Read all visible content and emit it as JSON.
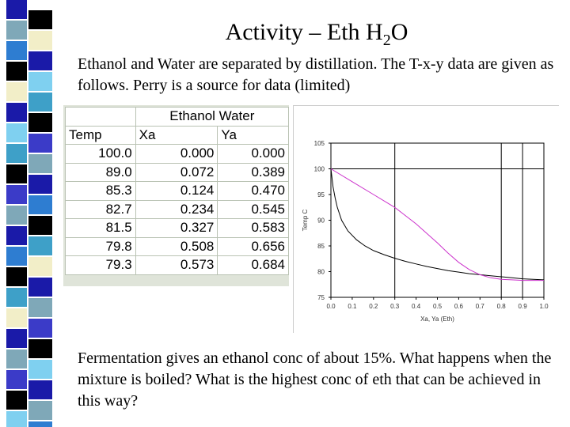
{
  "slide": {
    "title_main": "Activity – Eth H",
    "title_sub": "2",
    "title_tail": "O",
    "intro": "Ethanol and Water are separated by distillation.  The T-x-y data are given as follows. Perry is a source for data (limited)",
    "question": "Fermentation gives an ethanol conc of about 15%.   What happens when the mixture is boiled?  What is the highest conc of eth that can be achieved in this way?"
  },
  "table": {
    "caption": "Ethanol Water",
    "headers": [
      "Temp",
      "Xa",
      "Ya"
    ],
    "rows": [
      [
        "100.0",
        "0.000",
        "0.000"
      ],
      [
        "89.0",
        "0.072",
        "0.389"
      ],
      [
        "85.3",
        "0.124",
        "0.470"
      ],
      [
        "82.7",
        "0.234",
        "0.545"
      ],
      [
        "81.5",
        "0.327",
        "0.583"
      ],
      [
        "79.8",
        "0.508",
        "0.656"
      ],
      [
        "79.3",
        "0.573",
        "0.684"
      ]
    ]
  },
  "chart_data": {
    "type": "line",
    "xlabel": "Xa, Ya (Eth)",
    "ylabel": "Temp C",
    "xlim": [
      0,
      1
    ],
    "ylim": [
      75,
      105
    ],
    "x_ticks": [
      "0.0",
      "0.1",
      "0.2",
      "0.3",
      "0.4",
      "0.5",
      "0.6",
      "0.7",
      "0.8",
      "0.9",
      "1.0"
    ],
    "y_ticks": [
      "75",
      "80",
      "85",
      "90",
      "95",
      "100",
      "105"
    ],
    "hlines": [
      100
    ],
    "vlines": [
      0.3,
      0.8,
      0.9
    ],
    "series": [
      {
        "color": "#000000",
        "x": [
          0,
          0.01,
          0.02,
          0.03,
          0.05,
          0.08,
          0.12,
          0.16,
          0.2,
          0.25,
          0.3,
          0.35,
          0.4,
          0.45,
          0.5,
          0.55,
          0.6,
          0.65,
          0.7,
          0.75,
          0.8,
          0.85,
          0.9,
          0.95,
          1.0
        ],
        "y": [
          100,
          96.5,
          94.3,
          92.5,
          90.0,
          87.9,
          86.2,
          85.0,
          84.1,
          83.3,
          82.6,
          82.0,
          81.5,
          81.0,
          80.6,
          80.2,
          79.9,
          79.6,
          79.4,
          79.2,
          79.0,
          78.8,
          78.6,
          78.5,
          78.4
        ]
      },
      {
        "color": "#cc33cc",
        "x": [
          0,
          0.1,
          0.2,
          0.3,
          0.4,
          0.5,
          0.55,
          0.6,
          0.65,
          0.7,
          0.75,
          0.8,
          0.85,
          0.9,
          0.95,
          1.0
        ],
        "y": [
          100,
          97.5,
          95.0,
          92.5,
          89.3,
          85.6,
          83.6,
          81.8,
          80.4,
          79.4,
          78.8,
          78.5,
          78.4,
          78.3,
          78.3,
          78.3
        ]
      }
    ]
  },
  "stripe_colors": [
    "#1a1aa8",
    "#7fa8b8",
    "#2e7dd1",
    "#000000",
    "#f2eec8",
    "#7fd0f0",
    "#3ea0c8",
    "#3b3bc8"
  ]
}
